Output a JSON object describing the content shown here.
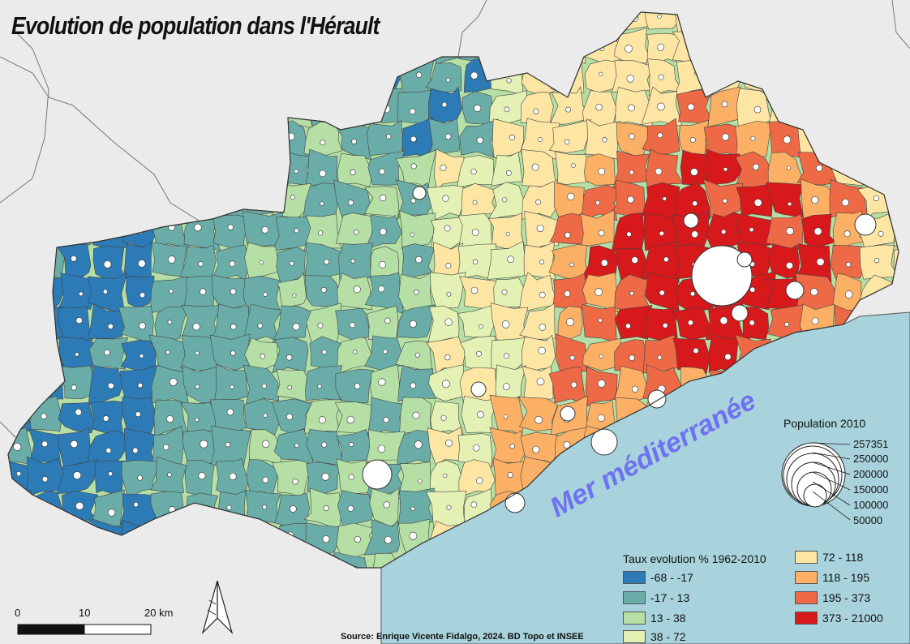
{
  "title": "Evolution de population dans l'Hérault",
  "sea_label": "Mer méditerranée",
  "source": "Source: Enrique Vicente Fidalgo, 2024. BD Topo et INSEE",
  "colors": {
    "sea": "#a8d3dc",
    "land_outside": "#ebebeb",
    "class1": "#2c7bb6",
    "class2": "#6aada8",
    "class3": "#b5dfa4",
    "class4": "#e3f2b4",
    "class5": "#fde6a4",
    "class6": "#fcb066",
    "class7": "#ee6a46",
    "class8": "#d7191c"
  },
  "legend_taux": {
    "title": "Taux evolution % 1962-2010",
    "classes": [
      {
        "label": "-68 - -17",
        "color": "#2c7bb6"
      },
      {
        "label": "-17 - 13",
        "color": "#6aada8"
      },
      {
        "label": "13 - 38",
        "color": "#b5dfa4"
      },
      {
        "label": "38 - 72",
        "color": "#e3f2b4"
      },
      {
        "label": "72 - 118",
        "color": "#fde6a4"
      },
      {
        "label": "118 - 195",
        "color": "#fcb066"
      },
      {
        "label": "195 - 373",
        "color": "#ee6a46"
      },
      {
        "label": "373 - 21000",
        "color": "#d7191c"
      }
    ]
  },
  "legend_population": {
    "title": "Population 2010",
    "values": [
      "257351",
      "250000",
      "200000",
      "150000",
      "100000",
      "50000"
    ]
  },
  "scalebar": {
    "labels": [
      "0",
      "10",
      "20 km"
    ]
  },
  "north_arrow_icon": "north-arrow-icon"
}
